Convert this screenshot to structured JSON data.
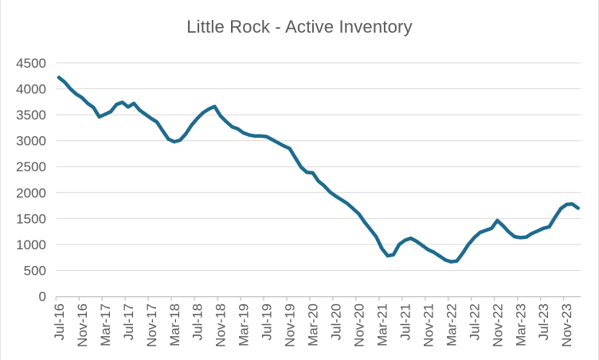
{
  "chart_data": {
    "type": "line",
    "title": "Little Rock - Active Inventory",
    "xlabel": "",
    "ylabel": "",
    "ylim": [
      0,
      4500
    ],
    "y_ticks": [
      0,
      500,
      1000,
      1500,
      2000,
      2500,
      3000,
      3500,
      4000,
      4500
    ],
    "grid": true,
    "legend_position": "none",
    "x_label_interval": 4,
    "x_tick_labels": [
      "Jul-16",
      "Nov-16",
      "Mar-17",
      "Jul-17",
      "Nov-17",
      "Mar-18",
      "Jul-18",
      "Nov-18",
      "Mar-19",
      "Jul-19",
      "Nov-19",
      "Mar-20",
      "Jul-20",
      "Nov-20",
      "Mar-21",
      "Jul-21",
      "Nov-21",
      "Mar-22",
      "Jul-22",
      "Nov-22",
      "Mar-23",
      "Jul-23",
      "Nov-23"
    ],
    "x": [
      "Jul-16",
      "Aug-16",
      "Sep-16",
      "Oct-16",
      "Nov-16",
      "Dec-16",
      "Jan-17",
      "Feb-17",
      "Mar-17",
      "Apr-17",
      "May-17",
      "Jun-17",
      "Jul-17",
      "Aug-17",
      "Sep-17",
      "Oct-17",
      "Nov-17",
      "Dec-17",
      "Jan-18",
      "Feb-18",
      "Mar-18",
      "Apr-18",
      "May-18",
      "Jun-18",
      "Jul-18",
      "Aug-18",
      "Sep-18",
      "Oct-18",
      "Nov-18",
      "Dec-18",
      "Jan-19",
      "Feb-19",
      "Mar-19",
      "Apr-19",
      "May-19",
      "Jun-19",
      "Jul-19",
      "Aug-19",
      "Sep-19",
      "Oct-19",
      "Nov-19",
      "Dec-19",
      "Jan-20",
      "Feb-20",
      "Mar-20",
      "Apr-20",
      "May-20",
      "Jun-20",
      "Jul-20",
      "Aug-20",
      "Sep-20",
      "Oct-20",
      "Nov-20",
      "Dec-20",
      "Jan-21",
      "Feb-21",
      "Mar-21",
      "Apr-21",
      "May-21",
      "Jun-21",
      "Jul-21",
      "Aug-21",
      "Sep-21",
      "Oct-21",
      "Nov-21",
      "Dec-21",
      "Jan-22",
      "Feb-22",
      "Mar-22",
      "Apr-22",
      "May-22",
      "Jun-22",
      "Jul-22",
      "Aug-22",
      "Sep-22",
      "Oct-22",
      "Nov-22",
      "Dec-22",
      "Jan-23",
      "Feb-23",
      "Mar-23",
      "Apr-23",
      "May-23",
      "Jun-23",
      "Jul-23",
      "Aug-23",
      "Sep-23",
      "Oct-23",
      "Nov-23",
      "Dec-23",
      "Jan-24"
    ],
    "series": [
      {
        "name": "Active Inventory",
        "values": [
          4220,
          4130,
          4000,
          3900,
          3830,
          3720,
          3640,
          3460,
          3510,
          3560,
          3700,
          3740,
          3650,
          3720,
          3590,
          3510,
          3430,
          3360,
          3190,
          3030,
          2980,
          3010,
          3130,
          3300,
          3430,
          3540,
          3610,
          3660,
          3480,
          3370,
          3270,
          3230,
          3150,
          3110,
          3090,
          3090,
          3080,
          3020,
          2960,
          2900,
          2850,
          2670,
          2490,
          2390,
          2380,
          2220,
          2130,
          2010,
          1930,
          1860,
          1790,
          1690,
          1590,
          1430,
          1290,
          1150,
          920,
          780,
          800,
          1000,
          1080,
          1120,
          1060,
          980,
          900,
          850,
          775,
          700,
          665,
          680,
          830,
          1000,
          1130,
          1230,
          1270,
          1310,
          1460,
          1360,
          1240,
          1150,
          1130,
          1140,
          1210,
          1260,
          1310,
          1340,
          1520,
          1690,
          1770,
          1780,
          1700
        ]
      }
    ],
    "colors": {
      "line": "#1f6b8e",
      "title_text": "#595959",
      "axis_text": "#595959",
      "gridline": "#d9d9d9",
      "axis_line": "#bfbfbf"
    }
  }
}
